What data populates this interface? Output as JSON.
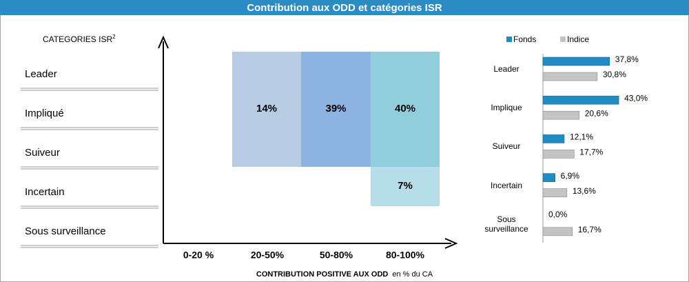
{
  "title": "Contribution aux ODD et catégories ISR",
  "matrix": {
    "y_title": "CATEGORIES ISR",
    "y_title_sup": "2",
    "rows": [
      "Leader",
      "Impliqué",
      "Suiveur",
      "Incertain",
      "Sous surveillance"
    ],
    "columns": [
      "0-20 %",
      "20-50%",
      "50-80%",
      "80-100%"
    ],
    "cells": [
      "14%",
      "39%",
      "40%",
      "7%"
    ],
    "x_title": "CONTRIBUTION POSITIVE AUX  ODD",
    "x_title_unit": "en % du  CA"
  },
  "chart_data": {
    "type": "bar",
    "orientation": "horizontal",
    "legend": "top",
    "categories": [
      "Leader",
      "Implique",
      "Suiveur",
      "Incertain",
      "Sous surveillance"
    ],
    "series": [
      {
        "name": "Fonds",
        "color": "#1f8cc4",
        "values": [
          37.8,
          43.0,
          12.1,
          6.9,
          0.0
        ],
        "value_labels": [
          "37,8%",
          "43,0%",
          "12,1%",
          "6,9%",
          "0,0%"
        ]
      },
      {
        "name": "Indice",
        "color": "#c4c4c4",
        "values": [
          30.8,
          20.6,
          17.7,
          13.6,
          16.7
        ],
        "value_labels": [
          "30,8%",
          "20,6%",
          "17,7%",
          "13,6%",
          "16,7%"
        ]
      }
    ]
  }
}
